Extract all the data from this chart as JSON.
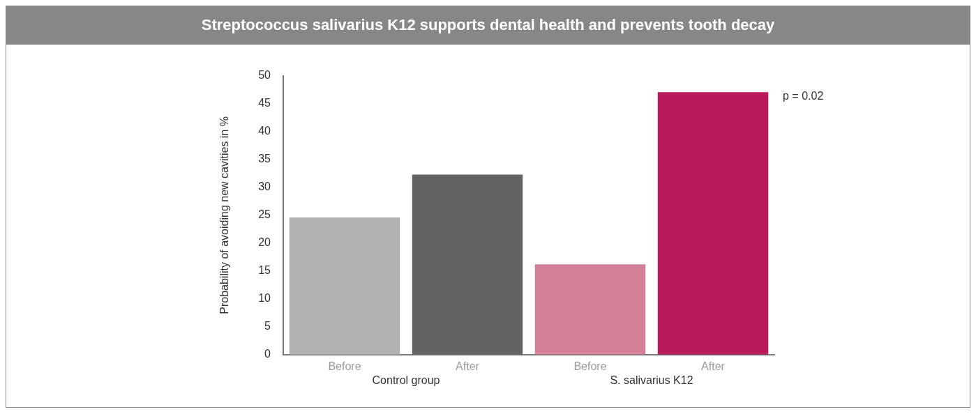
{
  "chart_data": {
    "type": "bar",
    "title": "Streptococcus salivarius K12 supports dental health and prevents tooth decay",
    "ylabel": "Probability of avoiding new cavities in %",
    "categories": [
      "Before",
      "After",
      "Before",
      "After"
    ],
    "values": [
      24.6,
      32.3,
      16.2,
      47.1
    ],
    "colors": [
      "#b2b2b2",
      "#636362",
      "#d37f96",
      "#b81a5a"
    ],
    "ylim": [
      0,
      50
    ],
    "yticks": [
      0,
      5,
      10,
      15,
      20,
      25,
      30,
      35,
      40,
      45,
      50
    ],
    "grid": false,
    "legend": false,
    "annotations": [
      "p = 0.02",
      "Control group",
      "S. salivarius K12"
    ]
  }
}
